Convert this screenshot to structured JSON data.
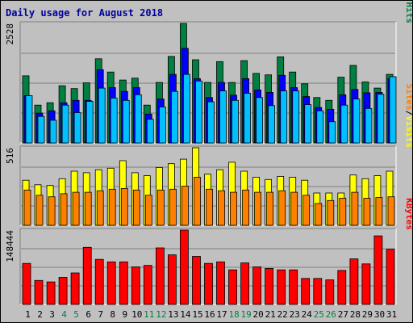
{
  "colors": {
    "title": "#0000a0",
    "hits": "#008040",
    "files": "#0000ff",
    "pages": "#00c0ff",
    "visits": "#ffff00",
    "sites": "#ff8000",
    "kbytes": "#ff0000",
    "weekday_label": "#000000",
    "weekend_label": "#008040",
    "background": "#c0c0c0",
    "grid": "#808080"
  },
  "chart_data": {
    "type": "bar",
    "title": "Daily usage for August 2018",
    "categories": [
      "1",
      "2",
      "3",
      "4",
      "5",
      "6",
      "7",
      "8",
      "9",
      "10",
      "11",
      "12",
      "13",
      "14",
      "15",
      "16",
      "17",
      "18",
      "19",
      "20",
      "21",
      "22",
      "23",
      "24",
      "25",
      "26",
      "27",
      "28",
      "29",
      "30",
      "31"
    ],
    "weekend_days": [
      "4",
      "5",
      "11",
      "12",
      "18",
      "19",
      "25",
      "26"
    ],
    "panels": [
      {
        "id": "hits-files-pages",
        "ymax": 2528,
        "ymax_label": "2528",
        "axis_legend": [
          "Pages",
          "/",
          "Files",
          "/",
          "Hits"
        ],
        "series": [
          {
            "name": "Hits",
            "color": "#008040",
            "values": [
              1420,
              800,
              850,
              1210,
              1150,
              1270,
              1780,
              1500,
              1330,
              1370,
              800,
              1280,
              1830,
              2528,
              1760,
              1280,
              1720,
              1280,
              1740,
              1470,
              1440,
              1820,
              1500,
              1250,
              960,
              900,
              1390,
              1640,
              1290,
              1160,
              1450
            ]
          },
          {
            "name": "Files",
            "color": "#0000ff",
            "values": [
              1000,
              630,
              680,
              850,
              900,
              900,
              1550,
              1170,
              1090,
              1170,
              610,
              930,
              1450,
              2000,
              1360,
              960,
              1280,
              1010,
              1360,
              1120,
              1070,
              1430,
              1170,
              980,
              750,
              710,
              1020,
              1130,
              1060,
              1070,
              1360
            ]
          },
          {
            "name": "Pages",
            "color": "#00c0ff",
            "values": [
              1000,
              560,
              480,
              800,
              640,
              880,
              1160,
              950,
              900,
              1020,
              500,
              760,
              1090,
              1450,
              1310,
              870,
              1100,
              900,
              1050,
              960,
              790,
              1100,
              1100,
              810,
              680,
              450,
              800,
              930,
              730,
              1030,
              1400
            ]
          }
        ]
      },
      {
        "id": "visits-sites",
        "ymax": 516,
        "ymax_label": "516",
        "axis_legend": [
          "Sites",
          "/",
          "Visits"
        ],
        "series": [
          {
            "name": "Visits",
            "color": "#ffff00",
            "values": [
              300,
              270,
              265,
              310,
              360,
              350,
              370,
              380,
              430,
              350,
              330,
              385,
              410,
              440,
              516,
              340,
              370,
              420,
              360,
              320,
              305,
              325,
              320,
              300,
              215,
              215,
              215,
              335,
              310,
              330,
              360
            ]
          },
          {
            "name": "Sites",
            "color": "#ff8000",
            "values": [
              235,
              200,
              190,
              210,
              220,
              220,
              230,
              240,
              245,
              235,
              200,
              235,
              240,
              260,
              320,
              240,
              230,
              220,
              235,
              220,
              220,
              230,
              220,
              200,
              145,
              165,
              180,
              220,
              180,
              185,
              190
            ]
          }
        ]
      },
      {
        "id": "kbytes",
        "ymax": 148444,
        "ymax_label": "148444",
        "axis_legend": [
          "KBytes"
        ],
        "series": [
          {
            "name": "KBytes",
            "color": "#ff0000",
            "values": [
              82000,
              48000,
              45000,
              54000,
              63000,
              114000,
              90000,
              85000,
              85000,
              75000,
              78000,
              113000,
              99000,
              148444,
              96000,
              82000,
              85000,
              69000,
              83000,
              75000,
              72000,
              69000,
              69000,
              52000,
              52000,
              49000,
              68000,
              91000,
              81000,
              137000,
              110000
            ]
          }
        ]
      }
    ]
  }
}
